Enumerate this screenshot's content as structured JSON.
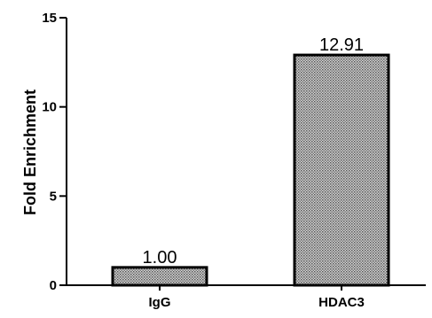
{
  "chart_data": {
    "type": "bar",
    "categories": [
      "IgG",
      "HDAC3"
    ],
    "values": [
      1.0,
      12.91
    ],
    "data_labels": [
      "1.00",
      "12.91"
    ],
    "title": "",
    "xlabel": "",
    "ylabel": "Fold Enrichment",
    "ylim": [
      0,
      15
    ],
    "yticks": [
      "0",
      "5",
      "10",
      "15"
    ],
    "grid": false,
    "legend": "none",
    "bar_fill": "#9a9a9a",
    "bar_pattern": "crosshatch",
    "bar_edge": "#000000"
  }
}
